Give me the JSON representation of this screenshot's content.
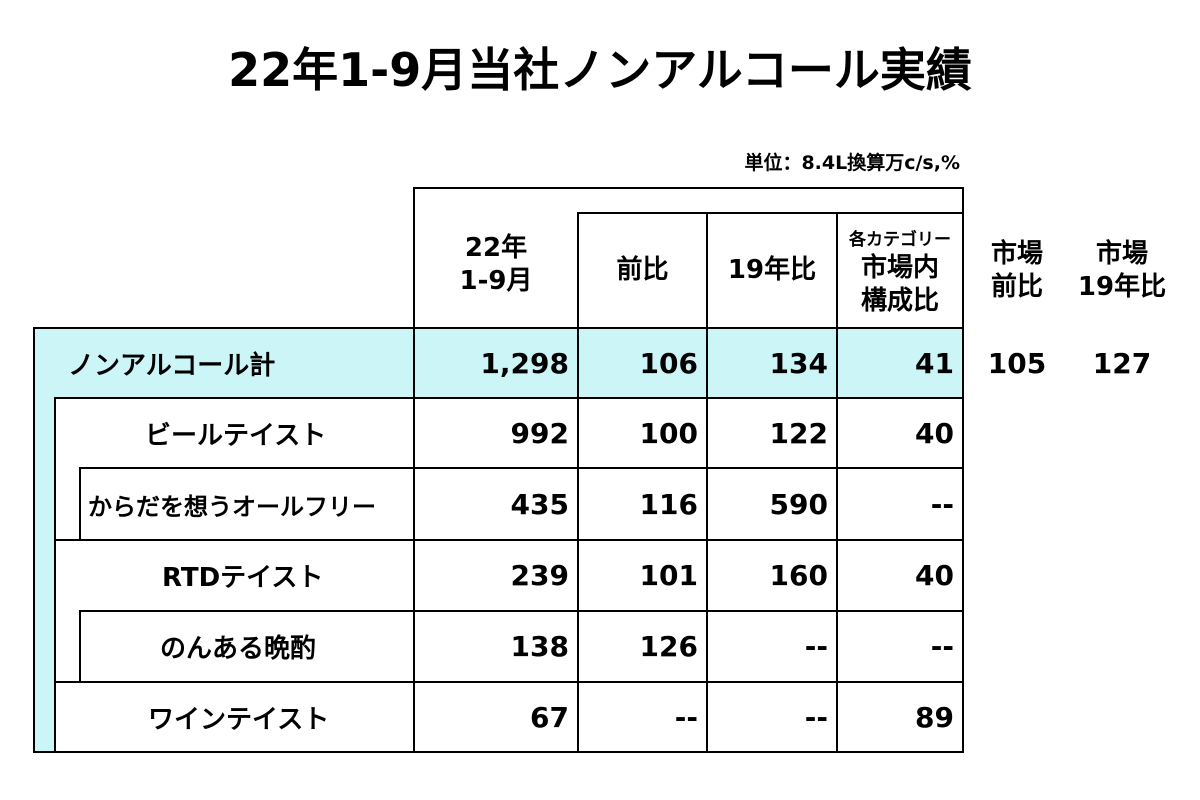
{
  "title": "22年1-9月当社ノンアルコール実績",
  "unit": "単位：8.4L換算万c/s,%",
  "headers": {
    "col_sales_l1": "22年",
    "col_sales_l2": "1-9月",
    "col_yoy": "前比",
    "col_vs19": "19年比",
    "col_share_l1": "各カテゴリー",
    "col_share_l2": "市場内",
    "col_share_l3": "構成比",
    "market_yoy_l1": "市場",
    "market_yoy_l2": "前比",
    "market_vs19_l1": "市場",
    "market_vs19_l2": "19年比"
  },
  "rows": [
    {
      "label": "ノンアルコール計",
      "sales": "1,298",
      "yoy": "106",
      "vs19": "134",
      "share": "41",
      "market_yoy": "105",
      "market_vs19": "127"
    },
    {
      "label": "ビールテイスト",
      "sales": "992",
      "yoy": "100",
      "vs19": "122",
      "share": "40"
    },
    {
      "label": "からだを想うオールフリー",
      "sales": "435",
      "yoy": "116",
      "vs19": "590",
      "share": "--"
    },
    {
      "label": "RTDテイスト",
      "sales": "239",
      "yoy": "101",
      "vs19": "160",
      "share": "40"
    },
    {
      "label": "のんある晩酌",
      "sales": "138",
      "yoy": "126",
      "vs19": "--",
      "share": "--"
    },
    {
      "label": "ワインテイスト",
      "sales": "67",
      "yoy": "--",
      "vs19": "--",
      "share": "89"
    }
  ],
  "colors": {
    "highlight": "#ccf5f7",
    "grid": "#000000"
  }
}
